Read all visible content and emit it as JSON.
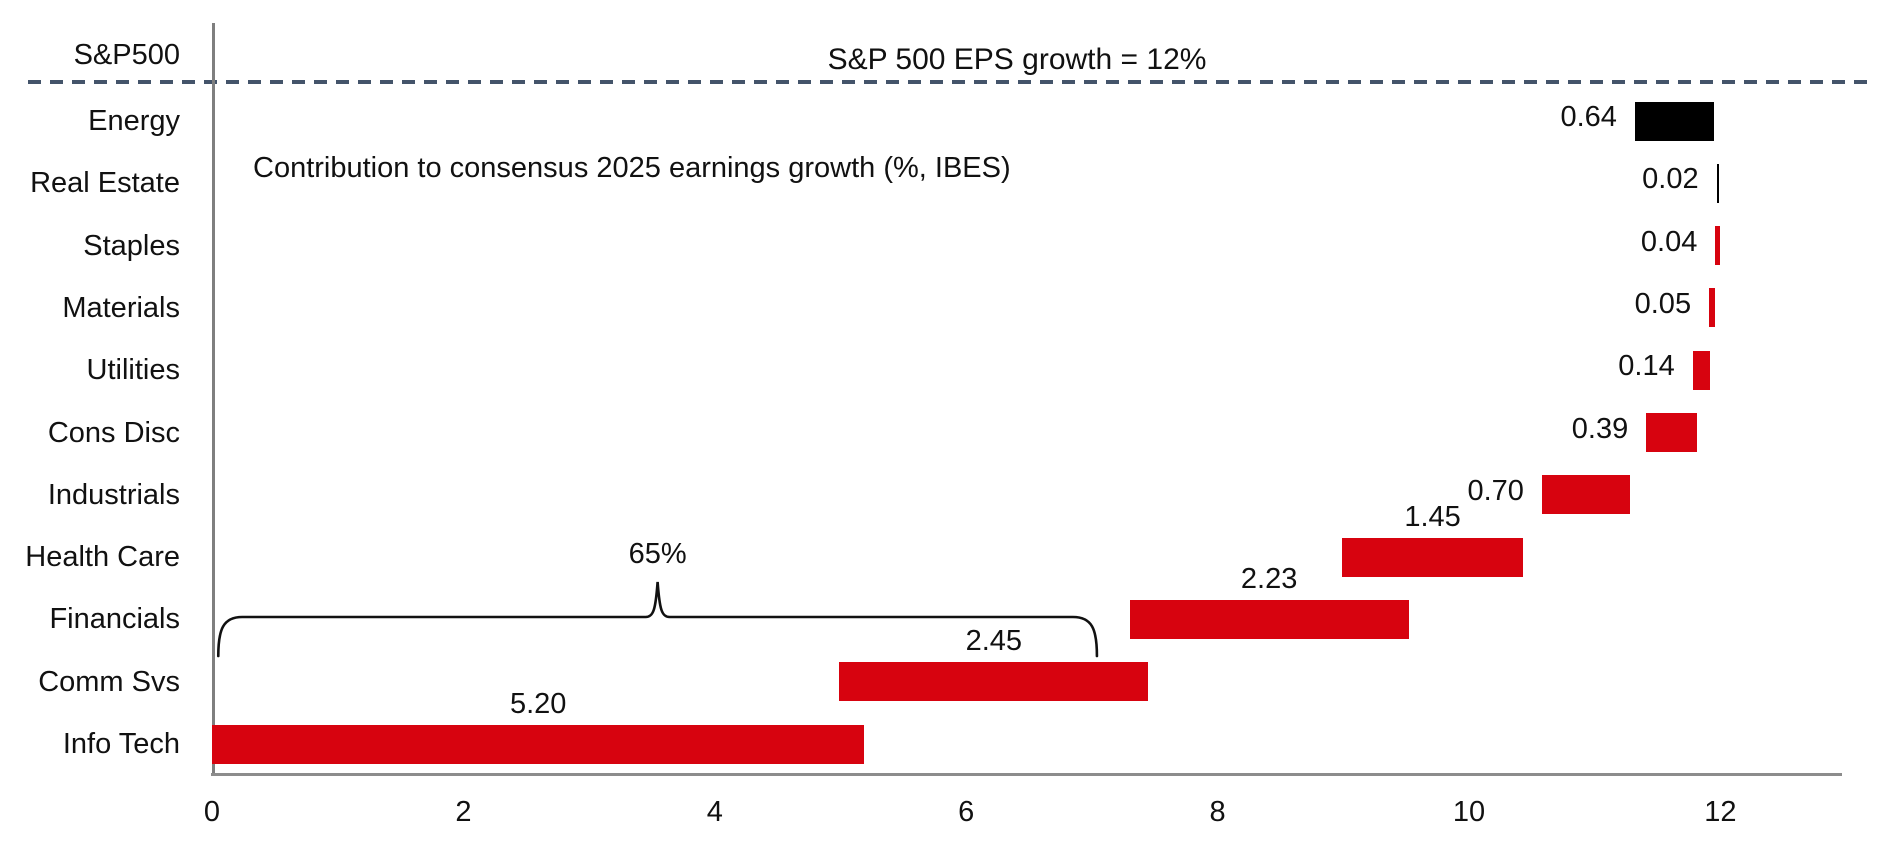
{
  "page": {
    "background": "#FFFFFF"
  },
  "chart_data": {
    "type": "bar",
    "subtype": "horizontal-waterfall",
    "title": "Contribution to consensus 2025 earnings growth (%, IBES)",
    "reference_line": {
      "row_label": "S&P500",
      "label": "S&P 500 EPS growth = 12%",
      "value": 12,
      "style": "dashed"
    },
    "annotation_bracket": {
      "label": "65%",
      "span_start": 0.05,
      "span_end": 7.04
    },
    "x_axis": {
      "tick_labels": [
        "0",
        "2",
        "4",
        "6",
        "8",
        "10",
        "12"
      ],
      "tick_values": [
        0,
        2,
        4,
        6,
        8,
        10,
        12
      ],
      "min": 0,
      "max": 13.0,
      "grid": false
    },
    "legend": null,
    "sectors": [
      {
        "name": "Energy",
        "value": 0.64,
        "value_label": "0.64",
        "bar_start": 11.32,
        "bar_end": 11.95,
        "color": "black",
        "label_side": "left"
      },
      {
        "name": "Real Estate",
        "value": 0.02,
        "value_label": "0.02",
        "bar_start": 11.97,
        "bar_end": 11.99,
        "color": "black",
        "label_side": "left"
      },
      {
        "name": "Staples",
        "value": 0.04,
        "value_label": "0.04",
        "bar_start": 11.96,
        "bar_end": 12.0,
        "color": "red",
        "label_side": "left"
      },
      {
        "name": "Materials",
        "value": 0.05,
        "value_label": "0.05",
        "bar_start": 11.91,
        "bar_end": 11.96,
        "color": "red",
        "label_side": "left"
      },
      {
        "name": "Utilities",
        "value": 0.14,
        "value_label": "0.14",
        "bar_start": 11.78,
        "bar_end": 11.92,
        "color": "red",
        "label_side": "left"
      },
      {
        "name": "Cons Disc",
        "value": 0.39,
        "value_label": "0.39",
        "bar_start": 11.41,
        "bar_end": 11.81,
        "color": "red",
        "label_side": "left"
      },
      {
        "name": "Industrials",
        "value": 0.7,
        "value_label": "0.70",
        "bar_start": 10.58,
        "bar_end": 11.28,
        "color": "red",
        "label_side": "left"
      },
      {
        "name": "Health Care",
        "value": 1.45,
        "value_label": "1.45",
        "bar_start": 8.99,
        "bar_end": 10.43,
        "color": "red",
        "label_side": "above"
      },
      {
        "name": "Financials",
        "value": 2.23,
        "value_label": "2.23",
        "bar_start": 7.3,
        "bar_end": 9.52,
        "color": "red",
        "label_side": "above"
      },
      {
        "name": "Comm Svs",
        "value": 2.45,
        "value_label": "2.45",
        "bar_start": 4.99,
        "bar_end": 7.45,
        "color": "red",
        "label_side": "above"
      },
      {
        "name": "Info Tech",
        "value": 5.2,
        "value_label": "5.20",
        "bar_start": 0.0,
        "bar_end": 5.19,
        "color": "red",
        "label_side": "above"
      }
    ],
    "colors": {
      "red": "#D7030F",
      "black": "#000000",
      "dashed_line": "#44546A",
      "axis_line": "#7F7F7F",
      "text": "#111111"
    }
  }
}
